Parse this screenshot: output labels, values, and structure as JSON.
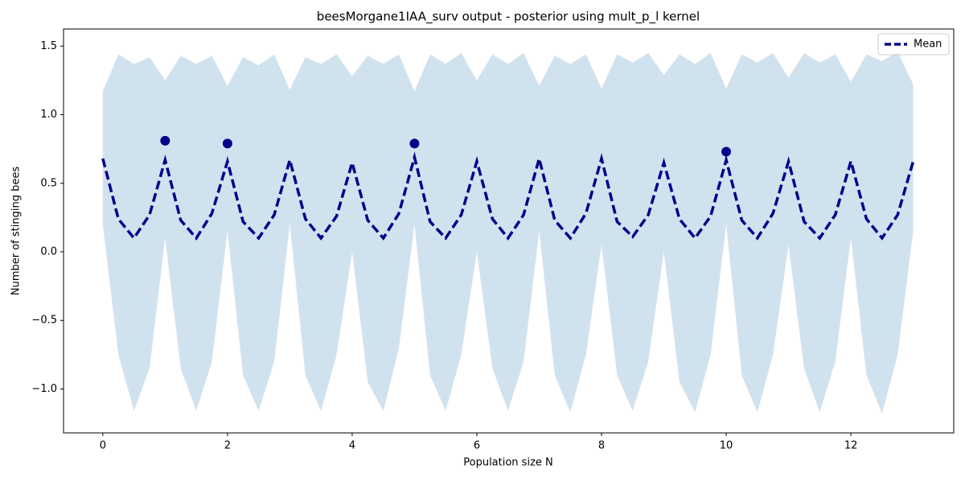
{
  "chart_data": {
    "type": "line",
    "title": "beesMorgane1IAA_surv output - posterior using mult_p_l kernel",
    "x_label": "Population size N",
    "y_label": "Number of stinging bees",
    "x": [
      0,
      0.25,
      0.5,
      0.75,
      1,
      1.25,
      1.5,
      1.75,
      2,
      2.25,
      2.5,
      2.75,
      3,
      3.25,
      3.5,
      3.75,
      4,
      4.25,
      4.5,
      4.75,
      5,
      5.25,
      5.5,
      5.75,
      6,
      6.25,
      6.5,
      6.75,
      7,
      7.25,
      7.5,
      7.75,
      8,
      8.25,
      8.5,
      8.75,
      9,
      9.25,
      9.5,
      9.75,
      10,
      10.25,
      10.5,
      10.75,
      11,
      11.25,
      11.5,
      11.75,
      12,
      12.25,
      12.5,
      12.75,
      13
    ],
    "series": [
      {
        "name": "Mean",
        "color": "#00008b",
        "values": [
          0.68,
          0.24,
          0.1,
          0.27,
          0.67,
          0.23,
          0.1,
          0.28,
          0.66,
          0.22,
          0.1,
          0.27,
          0.67,
          0.24,
          0.1,
          0.26,
          0.65,
          0.23,
          0.1,
          0.28,
          0.69,
          0.22,
          0.1,
          0.27,
          0.66,
          0.24,
          0.1,
          0.27,
          0.68,
          0.23,
          0.1,
          0.28,
          0.68,
          0.22,
          0.11,
          0.27,
          0.65,
          0.24,
          0.1,
          0.26,
          0.67,
          0.23,
          0.1,
          0.28,
          0.66,
          0.22,
          0.1,
          0.27,
          0.66,
          0.24,
          0.1,
          0.27,
          0.66
        ]
      }
    ],
    "band": {
      "color": "#d1e2ef",
      "upper": [
        1.17,
        1.44,
        1.37,
        1.42,
        1.25,
        1.43,
        1.37,
        1.43,
        1.21,
        1.42,
        1.36,
        1.44,
        1.18,
        1.42,
        1.37,
        1.44,
        1.28,
        1.43,
        1.37,
        1.44,
        1.17,
        1.44,
        1.37,
        1.45,
        1.25,
        1.44,
        1.37,
        1.45,
        1.21,
        1.43,
        1.37,
        1.44,
        1.19,
        1.44,
        1.38,
        1.45,
        1.29,
        1.44,
        1.37,
        1.45,
        1.19,
        1.44,
        1.38,
        1.45,
        1.27,
        1.45,
        1.38,
        1.44,
        1.24,
        1.44,
        1.39,
        1.46,
        1.22
      ],
      "lower": [
        0.2,
        -0.75,
        -1.16,
        -0.85,
        0.1,
        -0.85,
        -1.16,
        -0.8,
        0.15,
        -0.9,
        -1.16,
        -0.8,
        0.2,
        -0.9,
        -1.16,
        -0.75,
        0.0,
        -0.95,
        -1.16,
        -0.7,
        0.2,
        -0.9,
        -1.16,
        -0.75,
        0.0,
        -0.85,
        -1.16,
        -0.8,
        0.15,
        -0.9,
        -1.17,
        -0.75,
        0.05,
        -0.9,
        -1.16,
        -0.8,
        0.0,
        -0.95,
        -1.17,
        -0.75,
        0.2,
        -0.9,
        -1.17,
        -0.75,
        0.05,
        -0.85,
        -1.17,
        -0.8,
        0.1,
        -0.9,
        -1.18,
        -0.75,
        0.15
      ]
    },
    "observations": {
      "color": "#00008b",
      "x": [
        1,
        2,
        5,
        10
      ],
      "values": [
        0.81,
        0.79,
        0.79,
        0.73
      ]
    },
    "xlim": [
      -0.63,
      13.65
    ],
    "ylim": [
      -1.32,
      1.625
    ],
    "xticks": [
      0,
      2,
      4,
      6,
      8,
      10,
      12
    ],
    "yticks": [
      {
        "value": -1,
        "label": "−1.0"
      },
      {
        "value": -0.5,
        "label": "−0.5"
      },
      {
        "value": 0,
        "label": "0.0"
      },
      0.5,
      {
        "value": 1,
        "label": "1.0"
      },
      1.5
    ],
    "legend": "upper right"
  }
}
